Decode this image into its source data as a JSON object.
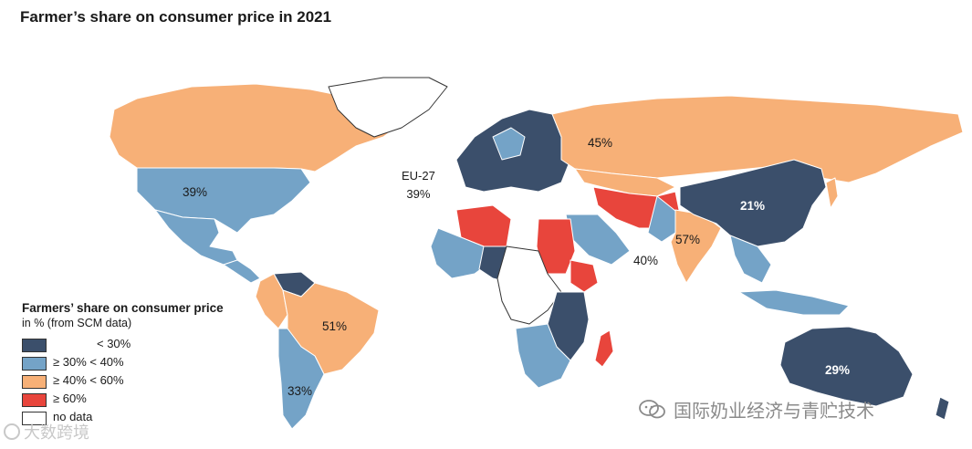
{
  "title": "Farmer’s share on consumer price in 2021",
  "legend": {
    "title": "Farmers’ share on consumer price",
    "subtitle": "in % (from SCM data)",
    "items": [
      {
        "label": "< 30%",
        "color": "#3b4f6b"
      },
      {
        "label": "≥ 30% < 40%",
        "color": "#74a3c7"
      },
      {
        "label": "≥ 40% < 60%",
        "color": "#f7b077"
      },
      {
        "label": "≥ 60%",
        "color": "#e8453c"
      },
      {
        "label": "no data",
        "color": "#ffffff"
      }
    ]
  },
  "map_labels": {
    "usa": "39%",
    "russia": "45%",
    "eu_name": "EU-27",
    "eu_value": "39%",
    "china": "21%",
    "india": "57%",
    "pakistan": "40%",
    "brazil": "51%",
    "argentina": "33%",
    "australia": "29%"
  },
  "watermarks": {
    "right": "国际奶业经济与青贮技术",
    "left": "大数跨境"
  }
}
